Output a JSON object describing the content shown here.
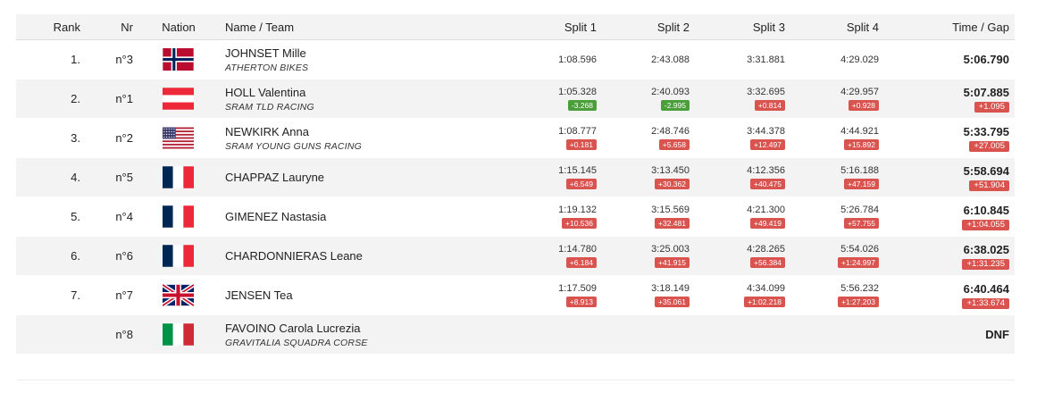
{
  "headers": {
    "rank": "Rank",
    "nr": "Nr",
    "nation": "Nation",
    "name": "Name / Team",
    "split1": "Split 1",
    "split2": "Split 2",
    "split3": "Split 3",
    "split4": "Split 4",
    "time": "Time / Gap"
  },
  "rows": [
    {
      "rank": "1.",
      "nr": "n°3",
      "flag": "norway-flag",
      "name": "JOHNSET Mille",
      "team": "ATHERTON BIKES",
      "s1": "1:08.596",
      "d1": "",
      "s2": "2:43.088",
      "d2": "",
      "s3": "3:31.881",
      "d3": "",
      "s4": "4:29.029",
      "d4": "",
      "time": "5:06.790",
      "gap": ""
    },
    {
      "rank": "2.",
      "nr": "n°1",
      "flag": "austria-flag",
      "name": "HOLL Valentina",
      "team": "SRAM TLD RACING",
      "s1": "1:05.328",
      "d1": "-3.268",
      "s2": "2:40.093",
      "d2": "-2.995",
      "s3": "3:32.695",
      "d3": "+0.814",
      "s4": "4:29.957",
      "d4": "+0.928",
      "time": "5:07.885",
      "gap": "+1.095"
    },
    {
      "rank": "3.",
      "nr": "n°2",
      "flag": "usa-flag",
      "name": "NEWKIRK Anna",
      "team": "SRAM YOUNG GUNS RACING",
      "s1": "1:08.777",
      "d1": "+0.181",
      "s2": "2:48.746",
      "d2": "+5.658",
      "s3": "3:44.378",
      "d3": "+12.497",
      "s4": "4:44.921",
      "d4": "+15.892",
      "time": "5:33.795",
      "gap": "+27.005"
    },
    {
      "rank": "4.",
      "nr": "n°5",
      "flag": "france-flag",
      "name": "CHAPPAZ Lauryne",
      "team": "",
      "s1": "1:15.145",
      "d1": "+6.549",
      "s2": "3:13.450",
      "d2": "+30.362",
      "s3": "4:12.356",
      "d3": "+40.475",
      "s4": "5:16.188",
      "d4": "+47.159",
      "time": "5:58.694",
      "gap": "+51.904"
    },
    {
      "rank": "5.",
      "nr": "n°4",
      "flag": "france-flag",
      "name": "GIMENEZ Nastasia",
      "team": "",
      "s1": "1:19.132",
      "d1": "+10.536",
      "s2": "3:15.569",
      "d2": "+32.481",
      "s3": "4:21.300",
      "d3": "+49.419",
      "s4": "5:26.784",
      "d4": "+57.755",
      "time": "6:10.845",
      "gap": "+1:04.055"
    },
    {
      "rank": "6.",
      "nr": "n°6",
      "flag": "france-flag",
      "name": "CHARDONNIERAS Leane",
      "team": "",
      "s1": "1:14.780",
      "d1": "+6.184",
      "s2": "3:25.003",
      "d2": "+41.915",
      "s3": "4:28.265",
      "d3": "+56.384",
      "s4": "5:54.026",
      "d4": "+1:24.997",
      "time": "6:38.025",
      "gap": "+1:31.235"
    },
    {
      "rank": "7.",
      "nr": "n°7",
      "flag": "uk-flag",
      "name": "JENSEN Tea",
      "team": "",
      "s1": "1:17.509",
      "d1": "+8.913",
      "s2": "3:18.149",
      "d2": "+35.061",
      "s3": "4:34.099",
      "d3": "+1:02.218",
      "s4": "5:56.232",
      "d4": "+1:27.203",
      "time": "6:40.464",
      "gap": "+1:33.674"
    },
    {
      "rank": "",
      "nr": "n°8",
      "flag": "italy-flag",
      "name": "FAVOINO Carola Lucrezia",
      "team": "GRAVITALIA SQUADRA CORSE",
      "s1": "",
      "d1": "",
      "s2": "",
      "d2": "",
      "s3": "",
      "d3": "",
      "s4": "",
      "d4": "",
      "time": "DNF",
      "gap": ""
    }
  ],
  "colors": {
    "positive_gap": "#d9534f",
    "negative_gap": "#4a9f3b",
    "row_alt": "#f3f3f3"
  }
}
